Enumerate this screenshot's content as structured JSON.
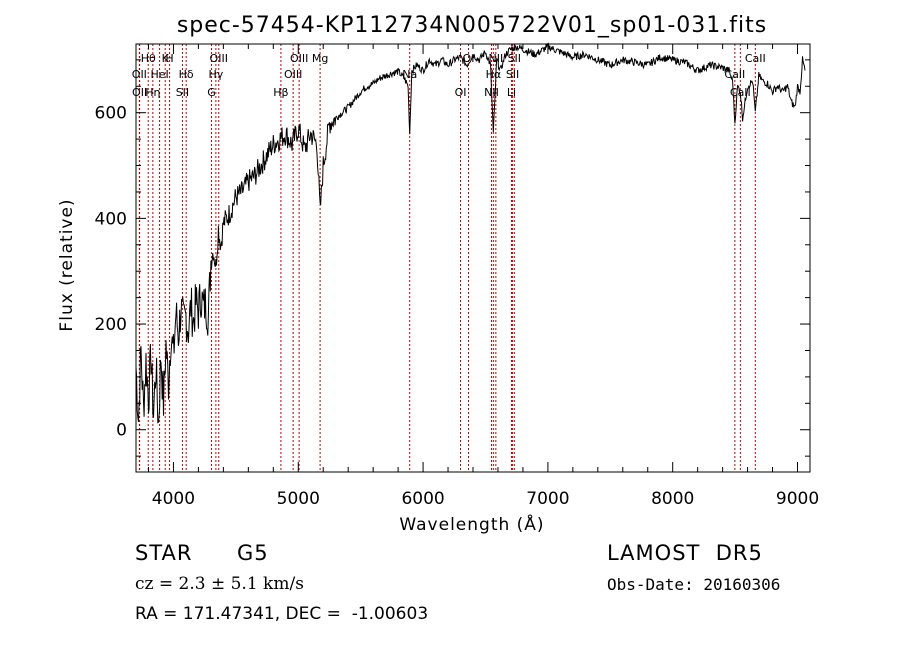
{
  "chart_data": {
    "type": "line",
    "title": "spec-57454-KP112734N005722V01_sp01-031.fits",
    "xlabel": "Wavelength (Å)",
    "ylabel": "Flux (relative)",
    "xlim": [
      3700,
      9100
    ],
    "ylim": [
      -80,
      730
    ],
    "x_ticks": [
      4000,
      5000,
      6000,
      7000,
      8000,
      9000
    ],
    "y_ticks": [
      0,
      200,
      400,
      600
    ],
    "series": [
      {
        "x": [
          3700,
          3720,
          3740,
          3760,
          3780,
          3800,
          3820,
          3840,
          3860,
          3880,
          3900,
          3920,
          3940,
          3960,
          3980,
          4000,
          4020,
          4040,
          4060,
          4080,
          4100,
          4120,
          4140,
          4160,
          4180,
          4200,
          4220,
          4240,
          4260,
          4280,
          4300,
          4320,
          4340,
          4360,
          4380,
          4400,
          4450,
          4500,
          4550,
          4600,
          4650,
          4700,
          4750,
          4800,
          4850,
          4900,
          4950,
          5000,
          5050,
          5100,
          5150,
          5175,
          5200,
          5250,
          5300,
          5350,
          5400,
          5450,
          5500,
          5550,
          5600,
          5650,
          5700,
          5750,
          5800,
          5850,
          5880,
          5893,
          5910,
          5950,
          6000,
          6050,
          6100,
          6150,
          6200,
          6250,
          6300,
          6350,
          6400,
          6450,
          6500,
          6540,
          6563,
          6590,
          6620,
          6660,
          6700,
          6750,
          6800,
          6900,
          7000,
          7100,
          7200,
          7300,
          7400,
          7500,
          7600,
          7700,
          7800,
          7900,
          8000,
          8100,
          8200,
          8300,
          8400,
          8450,
          8480,
          8498,
          8520,
          8542,
          8560,
          8600,
          8640,
          8662,
          8690,
          8720,
          8760,
          8800,
          8840,
          8880,
          8920,
          8950,
          8980,
          9000,
          9020,
          9040,
          9060
        ],
        "y": [
          120,
          20,
          150,
          40,
          130,
          60,
          140,
          30,
          120,
          10,
          140,
          50,
          160,
          90,
          180,
          140,
          220,
          180,
          230,
          200,
          215,
          190,
          235,
          205,
          240,
          225,
          255,
          230,
          240,
          215,
          320,
          340,
          310,
          380,
          350,
          390,
          410,
          440,
          450,
          470,
          480,
          500,
          520,
          540,
          550,
          560,
          540,
          570,
          530,
          560,
          540,
          410,
          500,
          580,
          590,
          600,
          610,
          625,
          640,
          650,
          655,
          665,
          670,
          675,
          678,
          665,
          650,
          560,
          680,
          690,
          680,
          700,
          690,
          700,
          690,
          700,
          705,
          690,
          710,
          700,
          715,
          690,
          560,
          700,
          680,
          710,
          720,
          725,
          720,
          710,
          725,
          715,
          705,
          710,
          700,
          690,
          700,
          695,
          690,
          705,
          700,
          695,
          680,
          690,
          685,
          680,
          660,
          580,
          650,
          640,
          590,
          650,
          660,
          600,
          670,
          660,
          655,
          640,
          650,
          640,
          650,
          620,
          610,
          650,
          640,
          700,
          680
        ]
      }
    ],
    "line_markers": [
      {
        "label": "Hθ",
        "x": 3798
      },
      {
        "label": "OII",
        "x": 3727
      },
      {
        "label": "OII",
        "x": 3729
      },
      {
        "label": "K",
        "x": 3934
      },
      {
        "label": "HeI",
        "x": 3889
      },
      {
        "label": "Hη",
        "x": 3835
      },
      {
        "label": "H",
        "x": 3969
      },
      {
        "label": "Hδ",
        "x": 4102
      },
      {
        "label": "SII",
        "x": 4072
      },
      {
        "label": "OIII",
        "x": 4363
      },
      {
        "label": "Hγ",
        "x": 4340
      },
      {
        "label": "G",
        "x": 4305
      },
      {
        "label": "OIII",
        "x": 5007
      },
      {
        "label": "OIII",
        "x": 4959
      },
      {
        "label": "Hβ",
        "x": 4861
      },
      {
        "label": "Mg",
        "x": 5175
      },
      {
        "label": "Na",
        "x": 5893
      },
      {
        "label": "OI",
        "x": 6300
      },
      {
        "label": "OI",
        "x": 6364
      },
      {
        "label": "Hα",
        "x": 6563
      },
      {
        "label": "NII",
        "x": 6548
      },
      {
        "label": "NII",
        "x": 6583
      },
      {
        "label": "SII",
        "x": 6717
      },
      {
        "label": "Li",
        "x": 6708
      },
      {
        "label": "SII",
        "x": 6731
      },
      {
        "label": "CaII",
        "x": 8498
      },
      {
        "label": "CaII",
        "x": 8542
      },
      {
        "label": "CaII",
        "x": 8662
      }
    ],
    "marker_color": "#c00000",
    "line_color": "#000000"
  },
  "info": {
    "class": "STAR",
    "subclass": "G5",
    "survey": "LAMOST  DR5",
    "cz": "cz = 2.3 ± 5.1 km/s",
    "obs_date": "Obs-Date: 20160306",
    "radec": "RA = 171.47341, DEC =  -1.00603"
  }
}
